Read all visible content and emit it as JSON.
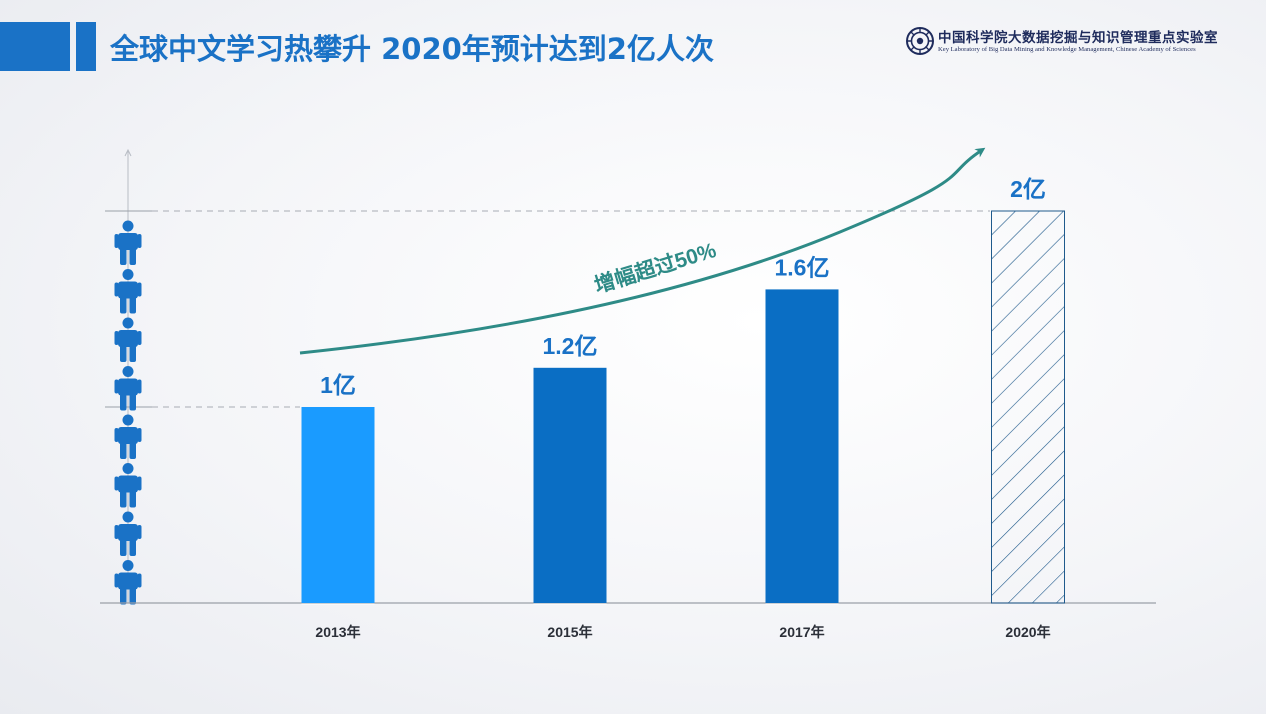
{
  "header": {
    "title": "全球中文学习热攀升 2020年预计达到2亿人次"
  },
  "logo": {
    "cn": "中国科学院大数据挖掘与知识管理重点实验室",
    "en": "Key Laboratory of Big Data Mining and Knowledge Management, Chinese Academy of Sciences"
  },
  "colors": {
    "accent": "#1a72c6",
    "bar_light": "#1a9bff",
    "bar_dark": "#0a6ec4",
    "arrow": "#2e8b87",
    "people": "#1a72c6",
    "hatch": "#1f5a8c"
  },
  "chart_data": {
    "type": "bar",
    "categories": [
      "2013年",
      "2015年",
      "2017年",
      "2020年"
    ],
    "values": [
      1,
      1.2,
      1.6,
      2
    ],
    "data_labels": [
      "1亿",
      "1.2亿",
      "1.6亿",
      "2亿"
    ],
    "bar_styles": [
      "light",
      "dark",
      "dark",
      "hatched"
    ],
    "ylim": [
      0,
      2
    ],
    "reference_lines": [
      1,
      2
    ],
    "annotation": "增幅超过50%",
    "people_icons": 8
  }
}
